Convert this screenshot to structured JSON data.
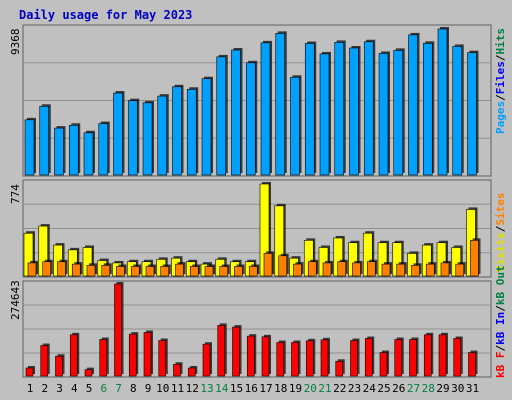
{
  "title": "Daily usage for May 2023",
  "colors": {
    "background": "#c0c0c0",
    "panel": "#c0c0c0",
    "title": "#0000c0",
    "pages": "#00a0ff",
    "hits": "#00c0ff",
    "files": "#0000ff",
    "visits": "#ffff00",
    "sites": "#ff8000",
    "kbytes": "#ff0000",
    "kb_in": "#0000ff",
    "kb_out": "#008040",
    "weekend": "#008040",
    "weekday": "#000000"
  },
  "chart_data": [
    {
      "type": "bar",
      "panel": "hits-files-pages",
      "title": "Daily usage for May 2023",
      "categories": [
        "1",
        "2",
        "3",
        "4",
        "5",
        "6",
        "7",
        "8",
        "9",
        "10",
        "11",
        "12",
        "13",
        "14",
        "15",
        "16",
        "17",
        "18",
        "19",
        "20",
        "21",
        "22",
        "23",
        "24",
        "25",
        "26",
        "27",
        "28",
        "29",
        "30",
        "31"
      ],
      "weekend_days": [
        "6",
        "7",
        "13",
        "14",
        "20",
        "21",
        "27",
        "28"
      ],
      "ylabel_parts": [
        "Pages",
        "/",
        "Files",
        "/",
        "Hits"
      ],
      "ymax_label": "9368",
      "ylim": [
        0,
        9368
      ],
      "series": [
        {
          "name": "Hits",
          "values": [
            3540,
            4410,
            3010,
            3190,
            2710,
            3300,
            5260,
            4770,
            4630,
            5060,
            5660,
            5500,
            6180,
            7580,
            8020,
            7200,
            8480,
            9090,
            6270,
            8440,
            7770,
            8510,
            8150,
            8550,
            7800,
            8000,
            8990,
            8450,
            9368,
            8250,
            7850
          ]
        },
        {
          "name": "Files",
          "values": [
            3460,
            4330,
            2930,
            3110,
            2630,
            3220,
            5180,
            4690,
            4550,
            4980,
            5580,
            5420,
            6100,
            7500,
            7940,
            7120,
            8400,
            9010,
            6190,
            8360,
            7690,
            8430,
            8070,
            8470,
            7720,
            7920,
            8910,
            8370,
            9290,
            8170,
            7770
          ]
        }
      ]
    },
    {
      "type": "bar",
      "panel": "visits-sites",
      "categories": [
        "1",
        "2",
        "3",
        "4",
        "5",
        "6",
        "7",
        "8",
        "9",
        "10",
        "11",
        "12",
        "13",
        "14",
        "15",
        "16",
        "17",
        "18",
        "19",
        "20",
        "21",
        "22",
        "23",
        "24",
        "25",
        "26",
        "27",
        "28",
        "29",
        "30",
        "31"
      ],
      "ylabel_parts": [
        "Visits",
        "/",
        "Sites"
      ],
      "ymax_label": "774",
      "ylim": [
        0,
        774
      ],
      "series": [
        {
          "name": "Visits",
          "values": [
            360,
            420,
            260,
            220,
            240,
            130,
            110,
            120,
            120,
            140,
            150,
            120,
            100,
            140,
            120,
            120,
            774,
            590,
            150,
            300,
            240,
            320,
            280,
            360,
            280,
            280,
            190,
            260,
            280,
            240,
            560
          ]
        },
        {
          "name": "Sites",
          "values": [
            110,
            120,
            120,
            100,
            90,
            90,
            80,
            80,
            80,
            80,
            100,
            80,
            80,
            80,
            80,
            80,
            190,
            170,
            100,
            120,
            110,
            120,
            110,
            120,
            100,
            100,
            90,
            100,
            110,
            100,
            300
          ]
        }
      ]
    },
    {
      "type": "bar",
      "panel": "kbytes",
      "categories": [
        "1",
        "2",
        "3",
        "4",
        "5",
        "6",
        "7",
        "8",
        "9",
        "10",
        "11",
        "12",
        "13",
        "14",
        "15",
        "16",
        "17",
        "18",
        "19",
        "20",
        "21",
        "22",
        "23",
        "24",
        "25",
        "26",
        "27",
        "28",
        "29",
        "30",
        "31"
      ],
      "ylabel_parts": [
        "kB F",
        "/",
        "kB In",
        "/",
        "kB Out"
      ],
      "ymax_label": "274643",
      "ylim": [
        0,
        274643
      ],
      "series": [
        {
          "name": "kB F",
          "values": [
            24000,
            91000,
            59000,
            123000,
            19000,
            109000,
            274643,
            125000,
            130000,
            106000,
            35000,
            24000,
            95000,
            151000,
            146000,
            119000,
            117000,
            100000,
            100000,
            105000,
            108000,
            44000,
            106000,
            112000,
            70000,
            109000,
            109000,
            123000,
            123000,
            112000,
            70000
          ]
        }
      ]
    }
  ]
}
